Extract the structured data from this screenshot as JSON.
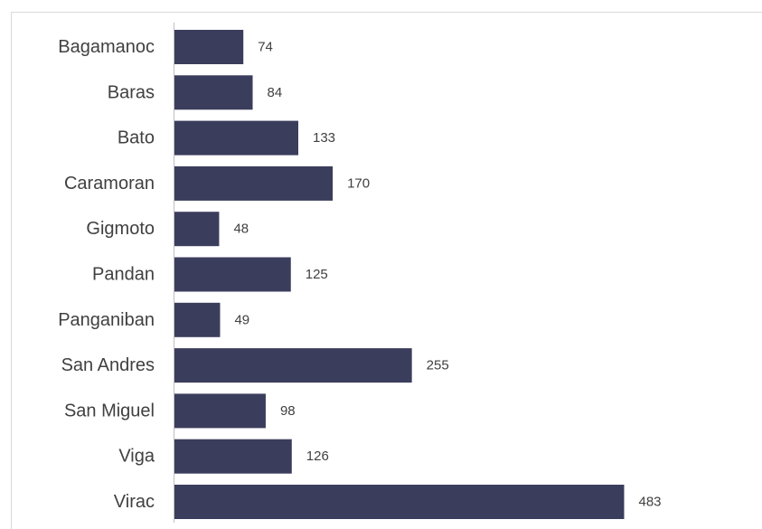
{
  "chart_data": {
    "type": "bar",
    "orientation": "horizontal",
    "categories": [
      "Bagamanoc",
      "Baras",
      "Bato",
      "Caramoran",
      "Gigmoto",
      "Pandan",
      "Panganiban",
      "San Andres",
      "San Miguel",
      "Viga",
      "Virac"
    ],
    "values": [
      74,
      84,
      133,
      170,
      48,
      125,
      49,
      255,
      98,
      126,
      483
    ],
    "title": "",
    "xlabel": "",
    "ylabel": "",
    "xlim": [
      0,
      500
    ],
    "grid": false,
    "legend": "none",
    "data_labels": true,
    "bar_color": "#3b3d5c"
  }
}
